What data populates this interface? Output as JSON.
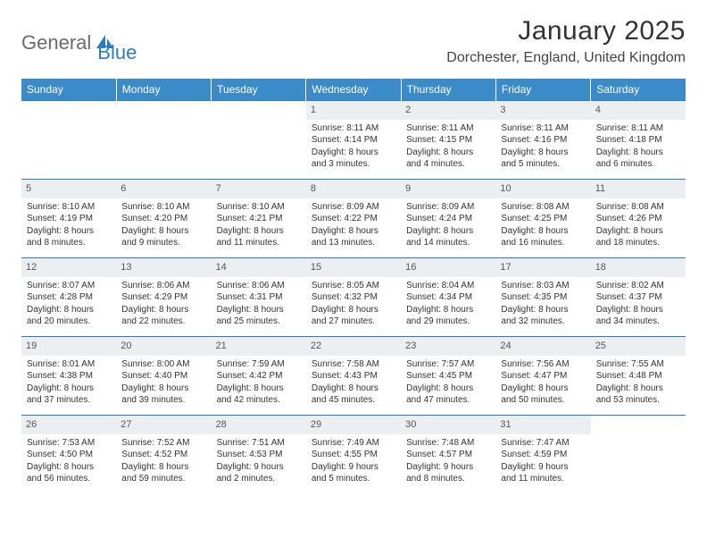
{
  "logo": {
    "text1": "General",
    "text2": "Blue"
  },
  "header": {
    "title": "January 2025",
    "location": "Dorchester, England, United Kingdom"
  },
  "colors": {
    "header_bg": "#3b8bc9",
    "header_text": "#ffffff",
    "daynum_bg": "#eceff1",
    "border": "#2d7bc0",
    "logo_gray": "#6b6b6b",
    "logo_blue": "#2d7bc0"
  },
  "table": {
    "columns": [
      "Sunday",
      "Monday",
      "Tuesday",
      "Wednesday",
      "Thursday",
      "Friday",
      "Saturday"
    ],
    "weeks": [
      [
        null,
        null,
        null,
        {
          "day": "1",
          "sunrise": "Sunrise: 8:11 AM",
          "sunset": "Sunset: 4:14 PM",
          "dl1": "Daylight: 8 hours",
          "dl2": "and 3 minutes."
        },
        {
          "day": "2",
          "sunrise": "Sunrise: 8:11 AM",
          "sunset": "Sunset: 4:15 PM",
          "dl1": "Daylight: 8 hours",
          "dl2": "and 4 minutes."
        },
        {
          "day": "3",
          "sunrise": "Sunrise: 8:11 AM",
          "sunset": "Sunset: 4:16 PM",
          "dl1": "Daylight: 8 hours",
          "dl2": "and 5 minutes."
        },
        {
          "day": "4",
          "sunrise": "Sunrise: 8:11 AM",
          "sunset": "Sunset: 4:18 PM",
          "dl1": "Daylight: 8 hours",
          "dl2": "and 6 minutes."
        }
      ],
      [
        {
          "day": "5",
          "sunrise": "Sunrise: 8:10 AM",
          "sunset": "Sunset: 4:19 PM",
          "dl1": "Daylight: 8 hours",
          "dl2": "and 8 minutes."
        },
        {
          "day": "6",
          "sunrise": "Sunrise: 8:10 AM",
          "sunset": "Sunset: 4:20 PM",
          "dl1": "Daylight: 8 hours",
          "dl2": "and 9 minutes."
        },
        {
          "day": "7",
          "sunrise": "Sunrise: 8:10 AM",
          "sunset": "Sunset: 4:21 PM",
          "dl1": "Daylight: 8 hours",
          "dl2": "and 11 minutes."
        },
        {
          "day": "8",
          "sunrise": "Sunrise: 8:09 AM",
          "sunset": "Sunset: 4:22 PM",
          "dl1": "Daylight: 8 hours",
          "dl2": "and 13 minutes."
        },
        {
          "day": "9",
          "sunrise": "Sunrise: 8:09 AM",
          "sunset": "Sunset: 4:24 PM",
          "dl1": "Daylight: 8 hours",
          "dl2": "and 14 minutes."
        },
        {
          "day": "10",
          "sunrise": "Sunrise: 8:08 AM",
          "sunset": "Sunset: 4:25 PM",
          "dl1": "Daylight: 8 hours",
          "dl2": "and 16 minutes."
        },
        {
          "day": "11",
          "sunrise": "Sunrise: 8:08 AM",
          "sunset": "Sunset: 4:26 PM",
          "dl1": "Daylight: 8 hours",
          "dl2": "and 18 minutes."
        }
      ],
      [
        {
          "day": "12",
          "sunrise": "Sunrise: 8:07 AM",
          "sunset": "Sunset: 4:28 PM",
          "dl1": "Daylight: 8 hours",
          "dl2": "and 20 minutes."
        },
        {
          "day": "13",
          "sunrise": "Sunrise: 8:06 AM",
          "sunset": "Sunset: 4:29 PM",
          "dl1": "Daylight: 8 hours",
          "dl2": "and 22 minutes."
        },
        {
          "day": "14",
          "sunrise": "Sunrise: 8:06 AM",
          "sunset": "Sunset: 4:31 PM",
          "dl1": "Daylight: 8 hours",
          "dl2": "and 25 minutes."
        },
        {
          "day": "15",
          "sunrise": "Sunrise: 8:05 AM",
          "sunset": "Sunset: 4:32 PM",
          "dl1": "Daylight: 8 hours",
          "dl2": "and 27 minutes."
        },
        {
          "day": "16",
          "sunrise": "Sunrise: 8:04 AM",
          "sunset": "Sunset: 4:34 PM",
          "dl1": "Daylight: 8 hours",
          "dl2": "and 29 minutes."
        },
        {
          "day": "17",
          "sunrise": "Sunrise: 8:03 AM",
          "sunset": "Sunset: 4:35 PM",
          "dl1": "Daylight: 8 hours",
          "dl2": "and 32 minutes."
        },
        {
          "day": "18",
          "sunrise": "Sunrise: 8:02 AM",
          "sunset": "Sunset: 4:37 PM",
          "dl1": "Daylight: 8 hours",
          "dl2": "and 34 minutes."
        }
      ],
      [
        {
          "day": "19",
          "sunrise": "Sunrise: 8:01 AM",
          "sunset": "Sunset: 4:38 PM",
          "dl1": "Daylight: 8 hours",
          "dl2": "and 37 minutes."
        },
        {
          "day": "20",
          "sunrise": "Sunrise: 8:00 AM",
          "sunset": "Sunset: 4:40 PM",
          "dl1": "Daylight: 8 hours",
          "dl2": "and 39 minutes."
        },
        {
          "day": "21",
          "sunrise": "Sunrise: 7:59 AM",
          "sunset": "Sunset: 4:42 PM",
          "dl1": "Daylight: 8 hours",
          "dl2": "and 42 minutes."
        },
        {
          "day": "22",
          "sunrise": "Sunrise: 7:58 AM",
          "sunset": "Sunset: 4:43 PM",
          "dl1": "Daylight: 8 hours",
          "dl2": "and 45 minutes."
        },
        {
          "day": "23",
          "sunrise": "Sunrise: 7:57 AM",
          "sunset": "Sunset: 4:45 PM",
          "dl1": "Daylight: 8 hours",
          "dl2": "and 47 minutes."
        },
        {
          "day": "24",
          "sunrise": "Sunrise: 7:56 AM",
          "sunset": "Sunset: 4:47 PM",
          "dl1": "Daylight: 8 hours",
          "dl2": "and 50 minutes."
        },
        {
          "day": "25",
          "sunrise": "Sunrise: 7:55 AM",
          "sunset": "Sunset: 4:48 PM",
          "dl1": "Daylight: 8 hours",
          "dl2": "and 53 minutes."
        }
      ],
      [
        {
          "day": "26",
          "sunrise": "Sunrise: 7:53 AM",
          "sunset": "Sunset: 4:50 PM",
          "dl1": "Daylight: 8 hours",
          "dl2": "and 56 minutes."
        },
        {
          "day": "27",
          "sunrise": "Sunrise: 7:52 AM",
          "sunset": "Sunset: 4:52 PM",
          "dl1": "Daylight: 8 hours",
          "dl2": "and 59 minutes."
        },
        {
          "day": "28",
          "sunrise": "Sunrise: 7:51 AM",
          "sunset": "Sunset: 4:53 PM",
          "dl1": "Daylight: 9 hours",
          "dl2": "and 2 minutes."
        },
        {
          "day": "29",
          "sunrise": "Sunrise: 7:49 AM",
          "sunset": "Sunset: 4:55 PM",
          "dl1": "Daylight: 9 hours",
          "dl2": "and 5 minutes."
        },
        {
          "day": "30",
          "sunrise": "Sunrise: 7:48 AM",
          "sunset": "Sunset: 4:57 PM",
          "dl1": "Daylight: 9 hours",
          "dl2": "and 8 minutes."
        },
        {
          "day": "31",
          "sunrise": "Sunrise: 7:47 AM",
          "sunset": "Sunset: 4:59 PM",
          "dl1": "Daylight: 9 hours",
          "dl2": "and 11 minutes."
        },
        null
      ]
    ]
  }
}
